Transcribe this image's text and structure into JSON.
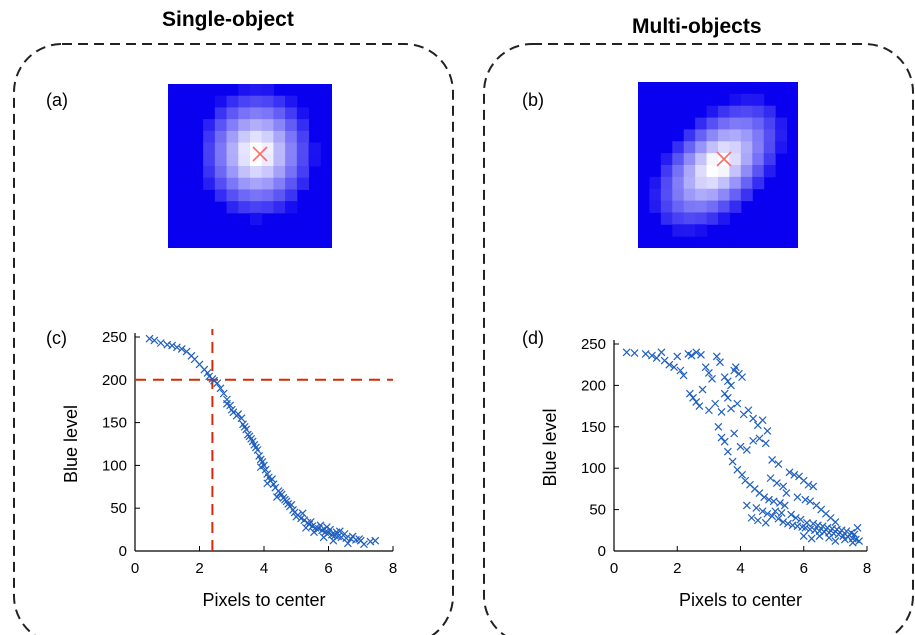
{
  "panels": [
    {
      "title": "Single-object"
    },
    {
      "title": "Multi-objects"
    }
  ],
  "images": [
    {
      "label": "(a)",
      "background": "#0a00f0",
      "marker_color": "#ff6a6a"
    },
    {
      "label": "(b)",
      "background": "#0a00f0",
      "marker_color": "#ff6a6a"
    }
  ],
  "chart_data": [
    {
      "label": "(c)",
      "type": "scatter",
      "xlabel": "Pixels to center",
      "ylabel": "Blue level",
      "xlim": [
        0,
        8
      ],
      "ylim": [
        0,
        250
      ],
      "xticks": [
        0,
        2,
        4,
        6,
        8
      ],
      "yticks": [
        0,
        50,
        100,
        150,
        200,
        250
      ],
      "marker": "x",
      "marker_color": "#1f5fbf",
      "threshold_color": "#d62a0a",
      "threshold": {
        "x": 2.4,
        "y": 200
      },
      "points": [
        [
          0.45,
          248
        ],
        [
          0.6,
          246
        ],
        [
          0.8,
          243
        ],
        [
          1.0,
          241
        ],
        [
          1.15,
          240
        ],
        [
          1.3,
          238
        ],
        [
          1.45,
          236
        ],
        [
          1.6,
          233
        ],
        [
          1.75,
          228
        ],
        [
          1.85,
          224
        ],
        [
          2.0,
          218
        ],
        [
          2.15,
          212
        ],
        [
          2.25,
          208
        ],
        [
          2.3,
          204
        ],
        [
          2.4,
          201
        ],
        [
          2.45,
          199
        ],
        [
          2.55,
          196
        ],
        [
          2.65,
          190
        ],
        [
          2.75,
          184
        ],
        [
          2.85,
          177
        ],
        [
          2.95,
          170
        ],
        [
          3.05,
          162
        ],
        [
          3.15,
          158
        ],
        [
          3.3,
          155
        ],
        [
          3.35,
          148
        ],
        [
          3.45,
          142
        ],
        [
          3.5,
          136
        ],
        [
          3.6,
          131
        ],
        [
          3.65,
          128
        ],
        [
          3.7,
          124
        ],
        [
          3.8,
          118
        ],
        [
          3.85,
          111
        ],
        [
          3.9,
          107
        ],
        [
          3.95,
          104
        ],
        [
          4.0,
          100
        ],
        [
          4.05,
          95
        ],
        [
          4.1,
          90
        ],
        [
          4.15,
          86
        ],
        [
          4.2,
          82
        ],
        [
          4.3,
          78
        ],
        [
          4.35,
          74
        ],
        [
          4.45,
          70
        ],
        [
          4.55,
          66
        ],
        [
          4.6,
          62
        ],
        [
          4.7,
          58
        ],
        [
          4.75,
          55
        ],
        [
          4.8,
          52
        ],
        [
          4.9,
          48
        ],
        [
          4.95,
          45
        ],
        [
          5.05,
          42
        ],
        [
          5.15,
          38
        ],
        [
          5.25,
          36
        ],
        [
          5.35,
          33
        ],
        [
          5.4,
          31
        ],
        [
          5.5,
          29
        ],
        [
          5.6,
          27
        ],
        [
          5.7,
          26
        ],
        [
          5.8,
          24
        ],
        [
          5.9,
          22
        ],
        [
          6.0,
          21
        ],
        [
          6.1,
          19
        ],
        [
          6.2,
          18
        ],
        [
          6.3,
          17
        ],
        [
          6.4,
          16
        ],
        [
          6.55,
          15
        ],
        [
          6.7,
          14
        ],
        [
          6.85,
          13
        ],
        [
          7.0,
          12
        ],
        [
          7.3,
          11
        ],
        [
          7.45,
          12
        ],
        [
          3.2,
          160
        ],
        [
          3.55,
          134
        ],
        [
          3.75,
          121
        ],
        [
          4.25,
          84
        ],
        [
          4.5,
          68
        ],
        [
          5.0,
          40
        ],
        [
          5.45,
          34
        ],
        [
          5.75,
          30
        ],
        [
          6.05,
          25
        ],
        [
          6.25,
          22
        ],
        [
          6.5,
          20
        ],
        [
          6.75,
          17
        ],
        [
          6.95,
          14
        ],
        [
          3.0,
          165
        ],
        [
          3.4,
          145
        ],
        [
          4.65,
          60
        ],
        [
          5.2,
          44
        ],
        [
          5.95,
          28
        ],
        [
          6.35,
          23
        ],
        [
          7.1,
          8
        ],
        [
          2.85,
          172
        ],
        [
          4.85,
          54
        ],
        [
          5.55,
          22
        ],
        [
          6.15,
          12
        ],
        [
          6.6,
          9
        ],
        [
          5.85,
          16
        ],
        [
          4.4,
          63
        ],
        [
          3.9,
          98
        ],
        [
          4.1,
          79
        ],
        [
          5.3,
          27
        ]
      ]
    },
    {
      "label": "(d)",
      "type": "scatter",
      "xlabel": "Pixels to center",
      "ylabel": "Blue level",
      "xlim": [
        0,
        8
      ],
      "ylim": [
        0,
        250
      ],
      "xticks": [
        0,
        2,
        4,
        6,
        8
      ],
      "yticks": [
        0,
        50,
        100,
        150,
        200,
        250
      ],
      "marker": "x",
      "marker_color": "#1f5fbf",
      "points": [
        [
          0.4,
          240
        ],
        [
          0.65,
          239
        ],
        [
          1.0,
          238
        ],
        [
          1.2,
          236
        ],
        [
          1.35,
          233
        ],
        [
          1.5,
          240
        ],
        [
          1.6,
          230
        ],
        [
          1.75,
          225
        ],
        [
          1.9,
          222
        ],
        [
          2.0,
          235
        ],
        [
          2.1,
          218
        ],
        [
          2.2,
          212
        ],
        [
          2.35,
          238
        ],
        [
          2.45,
          236
        ],
        [
          2.6,
          240
        ],
        [
          2.75,
          237
        ],
        [
          2.9,
          222
        ],
        [
          3.0,
          215
        ],
        [
          3.1,
          208
        ],
        [
          3.25,
          235
        ],
        [
          3.35,
          228
        ],
        [
          3.5,
          210
        ],
        [
          3.6,
          205
        ],
        [
          3.7,
          200
        ],
        [
          3.8,
          218
        ],
        [
          3.85,
          222
        ],
        [
          3.95,
          214
        ],
        [
          4.05,
          210
        ],
        [
          2.4,
          190
        ],
        [
          2.5,
          185
        ],
        [
          2.6,
          180
        ],
        [
          2.7,
          175
        ],
        [
          2.8,
          195
        ],
        [
          3.0,
          170
        ],
        [
          3.2,
          178
        ],
        [
          3.4,
          168
        ],
        [
          3.5,
          190
        ],
        [
          3.6,
          185
        ],
        [
          3.7,
          172
        ],
        [
          3.9,
          178
        ],
        [
          4.1,
          165
        ],
        [
          4.25,
          170
        ],
        [
          4.4,
          160
        ],
        [
          4.55,
          152
        ],
        [
          4.7,
          158
        ],
        [
          4.85,
          145
        ],
        [
          3.3,
          150
        ],
        [
          3.4,
          137
        ],
        [
          3.5,
          132
        ],
        [
          3.8,
          142
        ],
        [
          4.0,
          126
        ],
        [
          4.2,
          122
        ],
        [
          4.4,
          133
        ],
        [
          4.6,
          136
        ],
        [
          4.8,
          130
        ],
        [
          5.0,
          110
        ],
        [
          5.2,
          105
        ],
        [
          3.6,
          120
        ],
        [
          3.75,
          108
        ],
        [
          3.9,
          98
        ],
        [
          4.05,
          92
        ],
        [
          4.15,
          85
        ],
        [
          4.3,
          80
        ],
        [
          4.45,
          75
        ],
        [
          4.6,
          70
        ],
        [
          4.75,
          65
        ],
        [
          4.9,
          62
        ],
        [
          5.05,
          60
        ],
        [
          5.25,
          58
        ],
        [
          5.4,
          55
        ],
        [
          5.55,
          95
        ],
        [
          5.7,
          92
        ],
        [
          5.85,
          90
        ],
        [
          6.0,
          85
        ],
        [
          6.15,
          80
        ],
        [
          6.3,
          78
        ],
        [
          4.5,
          52
        ],
        [
          4.7,
          48
        ],
        [
          4.85,
          45
        ],
        [
          5.0,
          42
        ],
        [
          5.2,
          39
        ],
        [
          5.35,
          35
        ],
        [
          5.5,
          33
        ],
        [
          5.65,
          31
        ],
        [
          5.8,
          30
        ],
        [
          5.95,
          29
        ],
        [
          6.05,
          28
        ],
        [
          6.2,
          26
        ],
        [
          6.35,
          25
        ],
        [
          6.5,
          24
        ],
        [
          6.65,
          23
        ],
        [
          6.8,
          22
        ],
        [
          6.95,
          21
        ],
        [
          7.1,
          20
        ],
        [
          7.25,
          18
        ],
        [
          7.4,
          17
        ],
        [
          7.55,
          15
        ],
        [
          7.65,
          14
        ],
        [
          7.75,
          12
        ],
        [
          4.2,
          55
        ],
        [
          4.35,
          40
        ],
        [
          4.55,
          37
        ],
        [
          4.8,
          34
        ],
        [
          5.1,
          48
        ],
        [
          5.3,
          46
        ],
        [
          5.6,
          44
        ],
        [
          5.75,
          40
        ],
        [
          5.9,
          38
        ],
        [
          6.1,
          34
        ],
        [
          6.3,
          33
        ],
        [
          6.45,
          31
        ],
        [
          6.6,
          30
        ],
        [
          6.75,
          28
        ],
        [
          6.9,
          27
        ],
        [
          7.05,
          26
        ],
        [
          7.2,
          25
        ],
        [
          7.35,
          24
        ],
        [
          7.5,
          22
        ],
        [
          7.6,
          20
        ],
        [
          6.2,
          60
        ],
        [
          6.4,
          55
        ],
        [
          6.55,
          50
        ],
        [
          6.7,
          45
        ],
        [
          6.85,
          40
        ],
        [
          7.0,
          35
        ],
        [
          6.0,
          18
        ],
        [
          6.25,
          15
        ],
        [
          6.5,
          18
        ],
        [
          6.8,
          16
        ],
        [
          7.0,
          12
        ],
        [
          7.3,
          14
        ],
        [
          7.55,
          10
        ],
        [
          7.7,
          28
        ],
        [
          5.45,
          70
        ],
        [
          5.8,
          65
        ],
        [
          6.05,
          62
        ],
        [
          4.95,
          88
        ],
        [
          5.15,
          82
        ],
        [
          5.35,
          78
        ]
      ]
    }
  ]
}
